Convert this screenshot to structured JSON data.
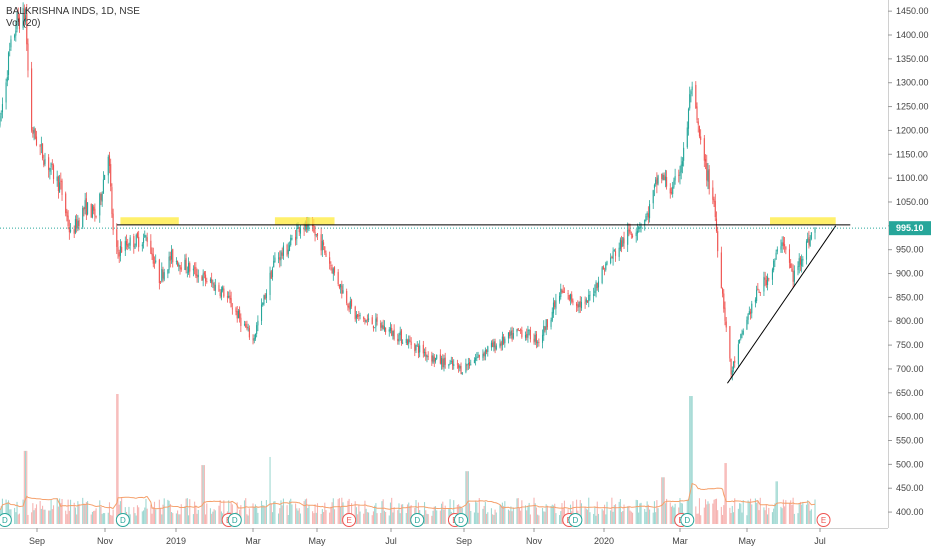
{
  "header": {
    "symbol_line": "BALKRISHNA INDS, 1D, NSE",
    "volume_line": "Vol (20)"
  },
  "colors": {
    "up": "#26a69a",
    "down": "#ef5350",
    "trendline": "#000000",
    "zone": "#ffeb3b",
    "last_price_line": "#26a69a",
    "vol_ma": "#f5a06b"
  },
  "chart_data": {
    "type": "candlestick",
    "x_ticks": [
      "Sep",
      "Nov",
      "2019",
      "Mar",
      "May",
      "Jul",
      "Sep",
      "Nov",
      "2020",
      "Mar",
      "May",
      "Jul"
    ],
    "y_ticks": [
      "1450.00",
      "1400.00",
      "1350.00",
      "1300.00",
      "1250.00",
      "1200.00",
      "1150.00",
      "1100.00",
      "1050.00",
      "1000.00",
      "950.00",
      "900.00",
      "850.00",
      "800.00",
      "750.00",
      "700.00",
      "650.00",
      "600.00",
      "550.00",
      "500.00",
      "450.00",
      "400.00"
    ],
    "y_range": [
      375,
      1465
    ],
    "last_price": "995.10",
    "last_price_value": 995.1,
    "x_range": [
      "2018-08-01",
      "2020-07-31"
    ],
    "price_path": [
      [
        "2018-08-01",
        1215
      ],
      [
        "2018-08-08",
        1350
      ],
      [
        "2018-08-15",
        1430
      ],
      [
        "2018-08-22",
        1440
      ],
      [
        "2018-08-26",
        1210
      ],
      [
        "2018-09-05",
        1150
      ],
      [
        "2018-09-20",
        1080
      ],
      [
        "2018-09-28",
        980
      ],
      [
        "2018-10-10",
        1040
      ],
      [
        "2018-10-20",
        1020
      ],
      [
        "2018-10-29",
        1160
      ],
      [
        "2018-11-03",
        940
      ],
      [
        "2018-11-15",
        965
      ],
      [
        "2018-11-30",
        975
      ],
      [
        "2018-12-10",
        890
      ],
      [
        "2018-12-20",
        935
      ],
      [
        "2019-01-10",
        900
      ],
      [
        "2019-02-01",
        860
      ],
      [
        "2019-02-25",
        760
      ],
      [
        "2019-03-15",
        930
      ],
      [
        "2019-03-25",
        950
      ],
      [
        "2019-04-05",
        1005
      ],
      [
        "2019-04-20",
        975
      ],
      [
        "2019-05-03",
        900
      ],
      [
        "2019-05-20",
        810
      ],
      [
        "2019-06-10",
        790
      ],
      [
        "2019-07-01",
        760
      ],
      [
        "2019-07-25",
        720
      ],
      [
        "2019-08-15",
        700
      ],
      [
        "2019-09-05",
        740
      ],
      [
        "2019-09-20",
        760
      ],
      [
        "2019-10-03",
        780
      ],
      [
        "2019-10-18",
        760
      ],
      [
        "2019-11-05",
        860
      ],
      [
        "2019-11-25",
        830
      ],
      [
        "2019-12-10",
        910
      ],
      [
        "2019-12-28",
        975
      ],
      [
        "2020-01-15",
        1020
      ],
      [
        "2020-01-25",
        1110
      ],
      [
        "2020-02-05",
        1070
      ],
      [
        "2020-02-15",
        1160
      ],
      [
        "2020-02-20",
        1290
      ],
      [
        "2020-03-01",
        1140
      ],
      [
        "2020-03-10",
        1050
      ],
      [
        "2020-03-14",
        930
      ],
      [
        "2020-03-24",
        690
      ],
      [
        "2020-04-05",
        800
      ],
      [
        "2020-04-15",
        860
      ],
      [
        "2020-04-27",
        910
      ],
      [
        "2020-05-05",
        975
      ],
      [
        "2020-05-14",
        890
      ],
      [
        "2020-05-22",
        945
      ],
      [
        "2020-06-01",
        995
      ]
    ],
    "volume_max": 640,
    "volume_spikes": [
      [
        "2018-08-22",
        360
      ],
      [
        "2018-11-05",
        640
      ],
      [
        "2019-01-15",
        290
      ],
      [
        "2019-03-10",
        330
      ],
      [
        "2019-08-20",
        260
      ],
      [
        "2020-01-28",
        230
      ],
      [
        "2020-02-20",
        630
      ],
      [
        "2020-03-20",
        300
      ],
      [
        "2020-05-01",
        210
      ]
    ],
    "events": [
      {
        "label": "D",
        "date": "2018-08-05",
        "kind": "dividend"
      },
      {
        "label": "D",
        "date": "2018-11-10",
        "kind": "dividend"
      },
      {
        "label": "E",
        "date": "2019-02-05",
        "kind": "earnings"
      },
      {
        "label": "D",
        "date": "2019-02-10",
        "kind": "dividend"
      },
      {
        "label": "E",
        "date": "2019-05-15",
        "kind": "earnings"
      },
      {
        "label": "D",
        "date": "2019-07-10",
        "kind": "dividend"
      },
      {
        "label": "E",
        "date": "2019-08-10",
        "kind": "earnings"
      },
      {
        "label": "D",
        "date": "2019-08-15",
        "kind": "dividend"
      },
      {
        "label": "E",
        "date": "2019-11-12",
        "kind": "earnings"
      },
      {
        "label": "D",
        "date": "2019-11-17",
        "kind": "dividend"
      },
      {
        "label": "E",
        "date": "2020-02-12",
        "kind": "earnings"
      },
      {
        "label": "D",
        "date": "2020-02-17",
        "kind": "dividend"
      },
      {
        "label": "E",
        "date": "2020-06-08",
        "kind": "earnings"
      }
    ],
    "annotations": {
      "resistance_line": {
        "from": [
          "2018-11-05",
          1002
        ],
        "to": [
          "2020-06-30",
          1002
        ]
      },
      "support_line": {
        "from": [
          "2020-03-21",
          670
        ],
        "to": [
          "2020-06-18",
          1000
        ]
      },
      "zones": [
        {
          "from": [
            "2018-11-08",
            1018
          ],
          "to": [
            "2018-12-26",
            1003
          ]
        },
        {
          "from": [
            "2019-03-15",
            1018
          ],
          "to": [
            "2019-05-03",
            1003
          ]
        },
        {
          "from": [
            "2020-04-25",
            1018
          ],
          "to": [
            "2020-06-18",
            1003
          ]
        }
      ]
    }
  }
}
